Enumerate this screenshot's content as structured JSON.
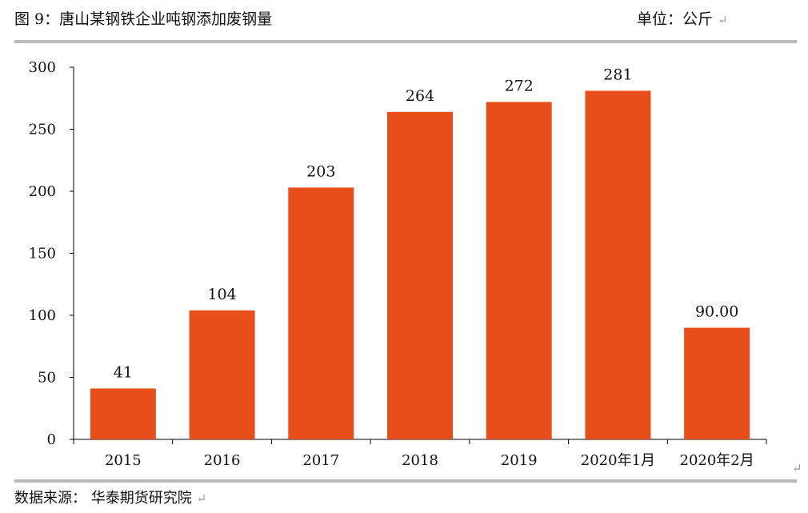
{
  "header": {
    "title": "图 9：唐山某钢铁企业吨钢添加废钢量",
    "unit": "单位：公斤"
  },
  "footer": {
    "source": "数据来源：  华泰期货研究院"
  },
  "colors": {
    "bar": "#E84E19",
    "axis": "#000000",
    "rule": "#B9B9B9"
  },
  "chart_data": {
    "type": "bar",
    "categories": [
      "2015",
      "2016",
      "2017",
      "2018",
      "2019",
      "2020年1月",
      "2020年2月"
    ],
    "values": [
      41,
      104,
      203,
      264,
      272,
      281,
      90
    ],
    "data_labels": [
      "41",
      "104",
      "203",
      "264",
      "272",
      "281",
      "90.00"
    ],
    "ylim": [
      0,
      300
    ],
    "yticks": [
      "0",
      "50",
      "100",
      "150",
      "200",
      "250",
      "300"
    ],
    "grid": false,
    "legend": "none"
  }
}
